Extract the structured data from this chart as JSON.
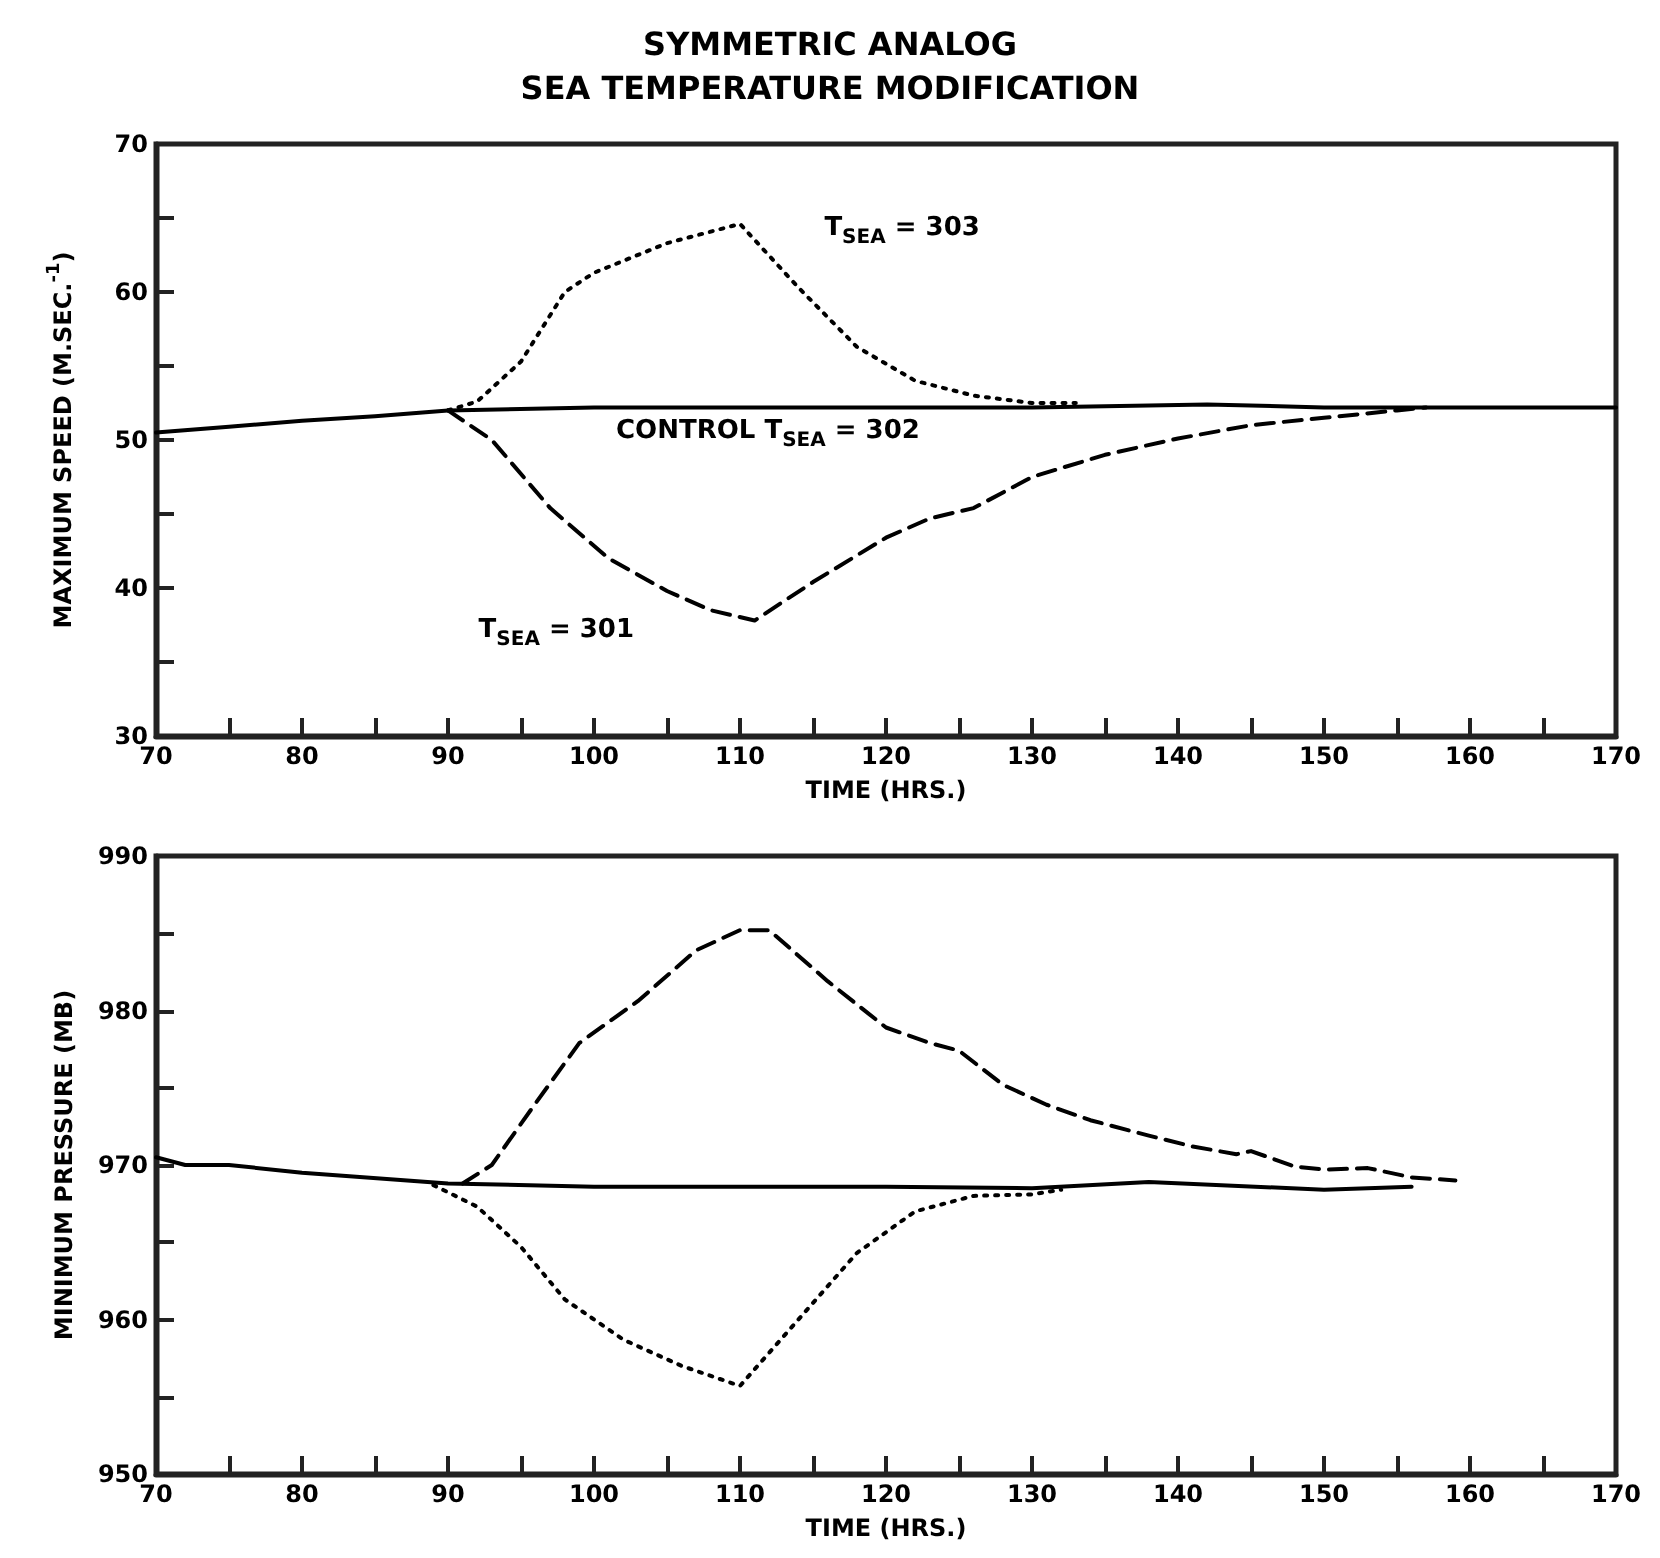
{
  "chart_data": [
    {
      "type": "line",
      "title": "SYMMETRIC ANALOG\nSEA TEMPERATURE MODIFICATION",
      "xlabel": "TIME (HRS.)",
      "ylabel": "MAXIMUM SPEED (M.SEC.$^{-1}$)",
      "xlim": [
        70,
        170
      ],
      "ylim": [
        30,
        70
      ],
      "xticks": [
        70,
        {
          "value": 75,
          "label": null
        },
        80,
        {
          "value": 85,
          "label": null
        },
        90,
        {
          "value": 95,
          "label": null
        },
        100,
        {
          "value": 105,
          "label": null
        },
        110,
        {
          "value": 115,
          "label": null
        },
        120,
        {
          "value": 125,
          "label": null
        },
        130,
        {
          "value": 135,
          "label": null
        },
        140,
        {
          "value": 145,
          "label": null
        },
        150,
        {
          "value": 155,
          "label": null
        },
        160,
        {
          "value": 165,
          "label": null
        },
        170
      ],
      "yticks": [
        30,
        {
          "value": 35,
          "label": null
        },
        40,
        {
          "value": 45,
          "label": null
        },
        50,
        {
          "value": 55,
          "label": null
        },
        60,
        {
          "value": 65,
          "label": null
        },
        70
      ],
      "grid": false,
      "series": [
        {
          "color": "#000000",
          "line_style": "solid",
          "x": [
            70,
            75,
            80,
            85,
            90,
            100,
            110,
            120,
            130,
            142,
            150,
            160,
            170
          ],
          "values": [
            50.5,
            50.9,
            51.3,
            51.6,
            52.0,
            52.2,
            52.2,
            52.2,
            52.2,
            52.4,
            52.2,
            52.2,
            52.2
          ]
        },
        {
          "color": "#000000",
          "line_style": "dotted",
          "x": [
            90,
            92,
            95,
            98,
            100,
            105,
            110,
            114,
            118,
            122,
            126,
            130,
            133
          ],
          "values": [
            52.0,
            52.6,
            55.3,
            60.0,
            61.3,
            63.3,
            64.6,
            60.3,
            56.3,
            54.0,
            53.0,
            52.5,
            52.5
          ]
        },
        {
          "color": "#000000",
          "line_style": "dashed",
          "x": [
            90,
            93,
            97,
            101,
            105,
            108,
            111,
            115,
            120,
            123,
            126,
            130,
            135,
            140,
            145,
            150,
            155,
            157
          ],
          "values": [
            52.0,
            50.0,
            45.4,
            42.0,
            39.8,
            38.5,
            37.8,
            40.4,
            43.4,
            44.7,
            45.4,
            47.5,
            49.0,
            50.1,
            51.0,
            51.5,
            52.0,
            52.2
          ]
        }
      ],
      "annotations": [
        {
          "text": "T$_{SEA}$ = 303",
          "x": 114,
          "y": 60.3
        },
        {
          "text": "T$_{SEA}$ = 301",
          "x": 101,
          "y": 42
        },
        {
          "text": "CONTROL T$_{SEA}$ = 302",
          "x": 120,
          "y": 52.2
        }
      ]
    },
    {
      "type": "line",
      "xlabel": "TIME (HRS.)",
      "ylabel": "MINIMUM PRESSURE (MB)",
      "xlim": [
        70,
        170
      ],
      "ylim": [
        950,
        990
      ],
      "xticks": [
        70,
        {
          "value": 75,
          "label": null
        },
        80,
        {
          "value": 85,
          "label": null
        },
        90,
        {
          "value": 95,
          "label": null
        },
        100,
        {
          "value": 105,
          "label": null
        },
        110,
        {
          "value": 115,
          "label": null
        },
        120,
        {
          "value": 125,
          "label": null
        },
        130,
        {
          "value": 135,
          "label": null
        },
        140,
        {
          "value": 145,
          "label": null
        },
        150,
        {
          "value": 155,
          "label": null
        },
        160,
        {
          "value": 165,
          "label": null
        },
        170
      ],
      "yticks": [
        950,
        {
          "value": 955,
          "label": null
        },
        960,
        {
          "value": 965,
          "label": null
        },
        970,
        {
          "value": 975,
          "label": null
        },
        980,
        {
          "value": 985,
          "label": null
        },
        990
      ],
      "grid": false,
      "series": [
        {
          "color": "#000000",
          "line_style": "solid",
          "x": [
            70,
            72,
            75,
            80,
            90,
            100,
            110,
            120,
            130,
            138,
            150,
            156
          ],
          "values": [
            970.5,
            970.0,
            970.0,
            969.5,
            968.8,
            968.6,
            968.6,
            968.6,
            968.5,
            968.9,
            968.4,
            968.6
          ]
        },
        {
          "color": "#000000",
          "line_style": "dashed",
          "x": [
            91,
            93,
            96,
            99,
            103,
            107,
            110,
            112,
            116,
            120,
            123,
            125,
            128,
            131,
            134,
            138,
            141,
            144,
            145,
            148,
            150,
            153,
            156,
            159
          ],
          "values": [
            968.8,
            970.0,
            974.0,
            977.9,
            980.6,
            983.9,
            985.2,
            985.2,
            981.9,
            978.9,
            977.9,
            977.4,
            975.2,
            973.9,
            972.9,
            971.9,
            971.2,
            970.7,
            970.9,
            969.9,
            969.7,
            969.8,
            969.2,
            969.0
          ]
        },
        {
          "color": "#000000",
          "line_style": "dotted",
          "x": [
            89,
            92,
            95,
            98,
            102,
            106,
            110,
            114,
            118,
            122,
            126,
            130,
            132
          ],
          "values": [
            968.7,
            967.3,
            964.7,
            961.3,
            958.7,
            957.0,
            955.7,
            960.0,
            964.3,
            967.0,
            968.0,
            968.1,
            968.4
          ]
        }
      ]
    }
  ]
}
